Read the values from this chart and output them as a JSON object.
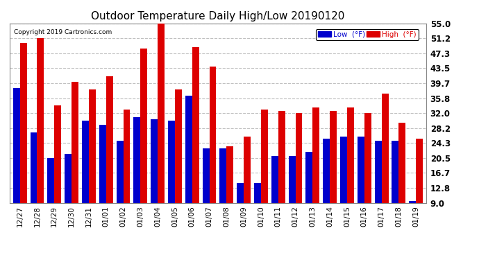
{
  "title": "Outdoor Temperature Daily High/Low 20190120",
  "copyright": "Copyright 2019 Cartronics.com",
  "categories": [
    "12/27",
    "12/28",
    "12/29",
    "12/30",
    "12/31",
    "01/01",
    "01/02",
    "01/03",
    "01/04",
    "01/05",
    "01/06",
    "01/07",
    "01/08",
    "01/09",
    "01/10",
    "01/11",
    "01/12",
    "01/13",
    "01/14",
    "01/15",
    "01/16",
    "01/17",
    "01/18",
    "01/19"
  ],
  "high": [
    50.0,
    51.2,
    34.0,
    40.0,
    38.0,
    41.5,
    33.0,
    48.5,
    55.0,
    38.0,
    49.0,
    44.0,
    23.5,
    26.0,
    33.0,
    32.5,
    32.0,
    33.5,
    32.5,
    33.5,
    32.0,
    37.0,
    29.5,
    25.5
  ],
  "low": [
    38.5,
    27.0,
    20.5,
    21.5,
    30.0,
    29.0,
    25.0,
    31.0,
    30.5,
    30.0,
    36.5,
    23.0,
    23.0,
    14.0,
    14.0,
    21.0,
    21.0,
    22.0,
    25.5,
    26.0,
    26.0,
    25.0,
    25.0,
    9.5
  ],
  "high_color": "#dd0000",
  "low_color": "#0000cc",
  "background_color": "#ffffff",
  "plot_bg_color": "#ffffff",
  "grid_color": "#c0c0c0",
  "yticks": [
    9.0,
    12.8,
    16.7,
    20.5,
    24.3,
    28.2,
    32.0,
    35.8,
    39.7,
    43.5,
    47.3,
    51.2,
    55.0
  ],
  "ymin": 9.0,
  "ymax": 55.0,
  "legend_low_label": "Low  (°F)",
  "legend_high_label": "High  (°F)"
}
